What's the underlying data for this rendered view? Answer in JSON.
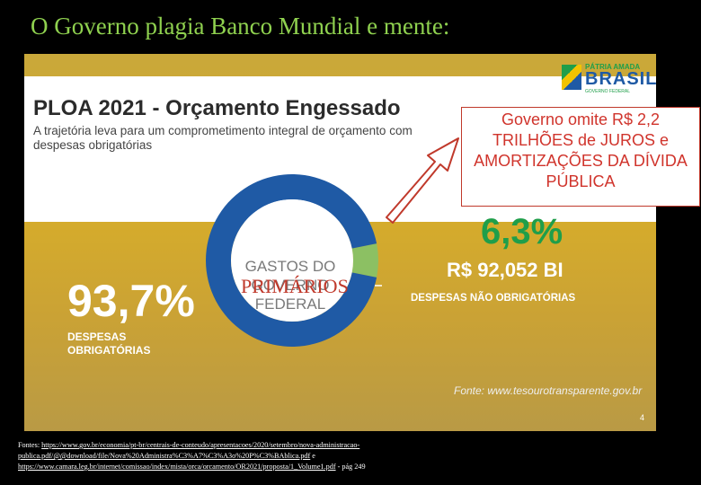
{
  "slide_title": "O Governo plagia Banco Mundial e mente:",
  "logo": {
    "line1": "PÁTRIA AMADA",
    "line2": "BRASIL",
    "line3": "GOVERNO FEDERAL"
  },
  "panel": {
    "title": "PLOA 2021 - Orçamento Engessado",
    "subtitle": "A trajetória leva para um comprometimento integral de orçamento com despesas obrigatórias",
    "donut_center_label": "GASTOS DO GOVERNO FEDERAL",
    "big_percent": "93,7%",
    "big_caption": "DESPESAS OBRIGATÓRIAS",
    "small_percent": "6,3%",
    "small_value": "R$ 92,052 BI",
    "small_caption": "DESPESAS NÃO OBRIGATÓRIAS",
    "source": "Fonte: www.tesourotransparente.gov.br",
    "page_number": "4",
    "colors": {
      "blue": "#1f5aa5",
      "green": "#8cc063",
      "accent_green": "#1f9e4a"
    }
  },
  "chart_data": {
    "type": "pie",
    "categories": [
      "DESPESAS OBRIGATÓRIAS",
      "DESPESAS NÃO OBRIGATÓRIAS"
    ],
    "values": [
      93.7,
      6.3
    ]
  },
  "callout": {
    "text": "Governo omite R$ 2,2 TRILHÕES de JUROS e AMORTIZAÇÕES DA DÍVIDA PÚBLICA"
  },
  "overlay_label": "PRIMÁRIOS",
  "footer": {
    "prefix": "Fontes: ",
    "link1": "https://www.gov.br/economia/pt-br/centrais-de-conteudo/apresentacoes/2020/setembro/nova-administracao-publica.pdf/@@download/file/Nova%20Administra%C3%A7%C3%A3o%20P%C3%BAblica.pdf",
    "middle": " e ",
    "link2": "https://www.camara.leg.br/internet/comissao/index/mista/orca/orcamento/OR2021/proposta/1_Volume1.pdf",
    "suffix": " - pág 249"
  }
}
